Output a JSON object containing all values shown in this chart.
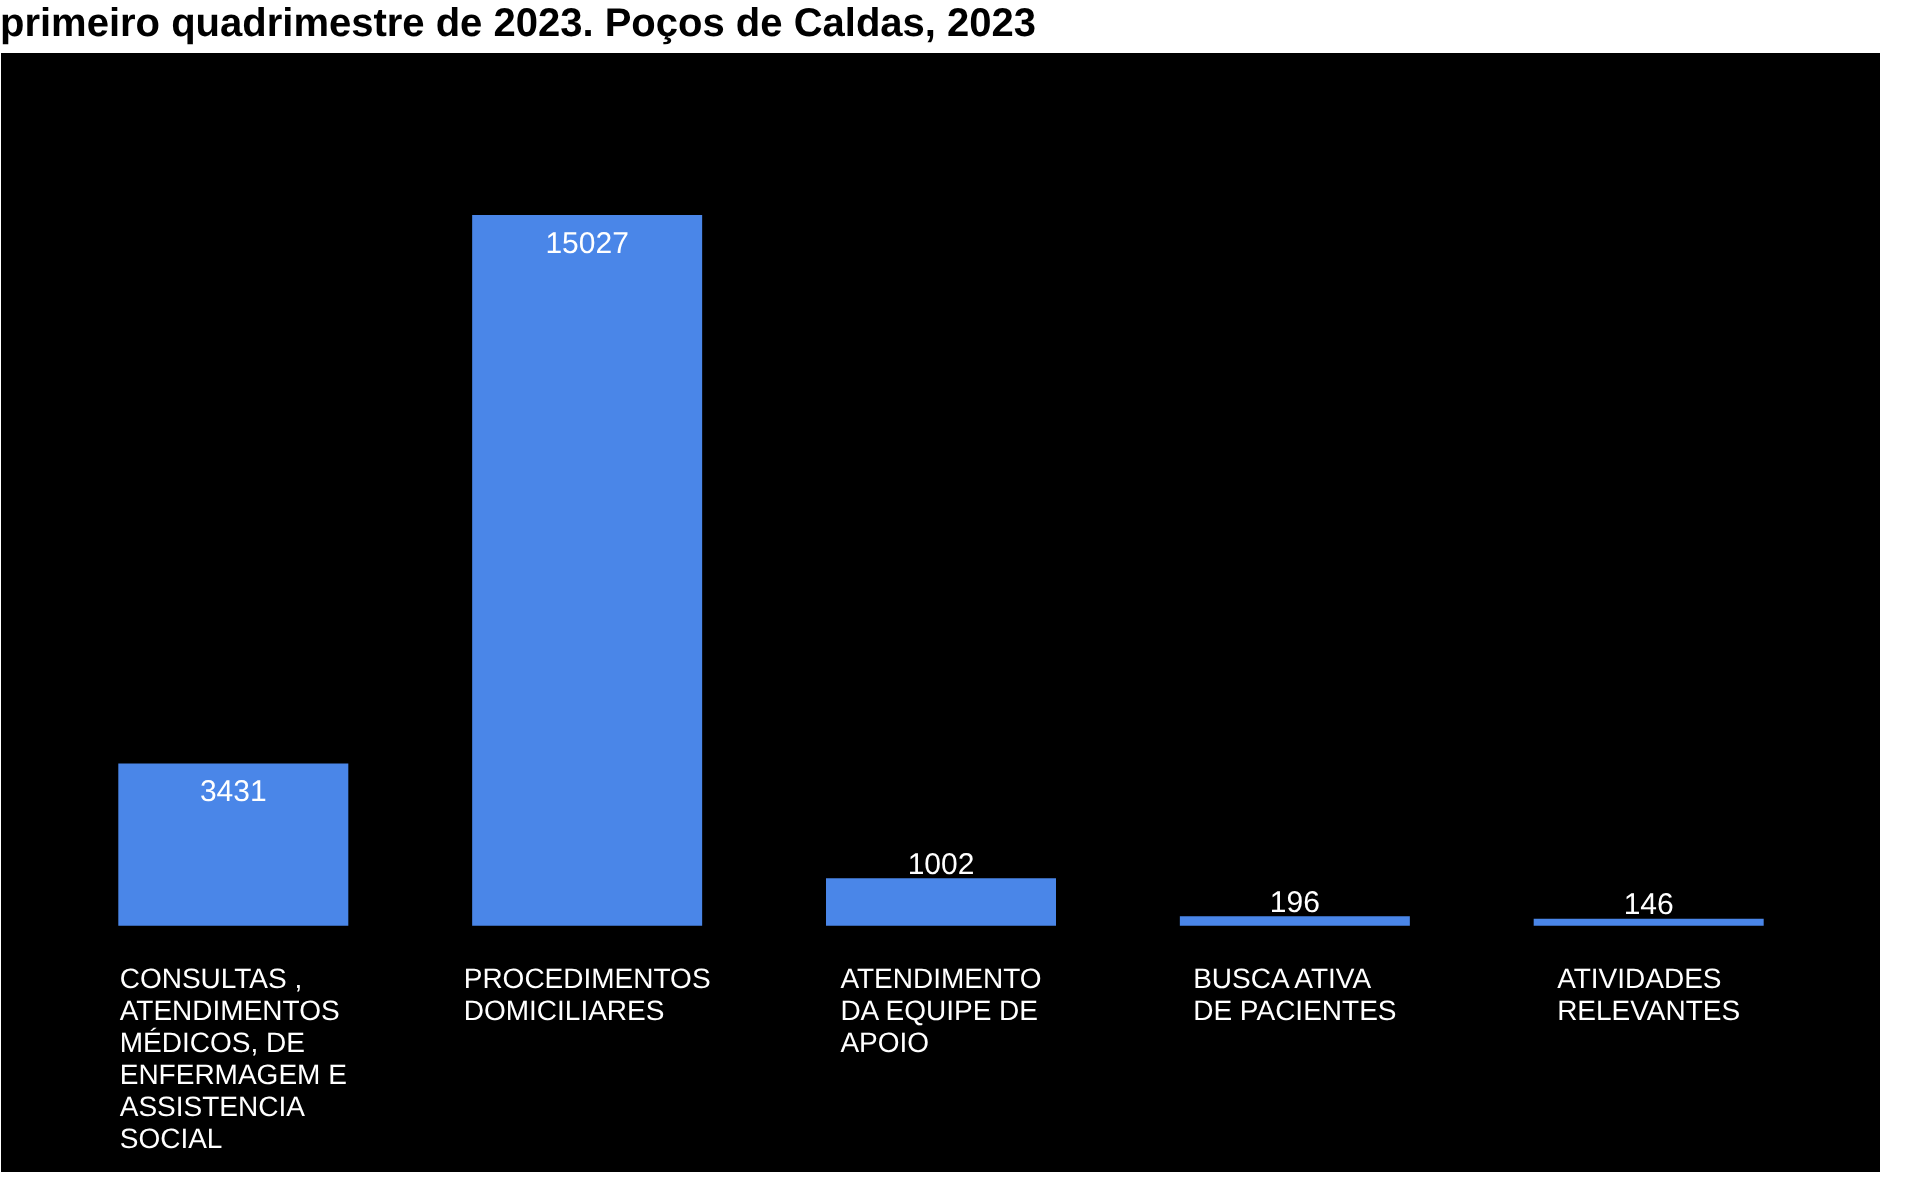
{
  "chart_data": {
    "type": "bar",
    "title": "primeiro quadrimestre de 2023. Poços de Caldas, 2023",
    "categories": [
      "CONSULTAS , ATENDIMENTOS MÉDICOS, DE ENFERMAGEM E ASSISTENCIA SOCIAL",
      "PROCEDIMENTOS DOMICILIARES",
      "ATENDIMENTO DA EQUIPE DE APOIO",
      "BUSCA ATIVA DE PACIENTES",
      "ATIVIDADES RELEVANTES"
    ],
    "values": [
      3431,
      15027,
      1002,
      196,
      146
    ],
    "color": "#4a86e8",
    "data_labels": true
  }
}
